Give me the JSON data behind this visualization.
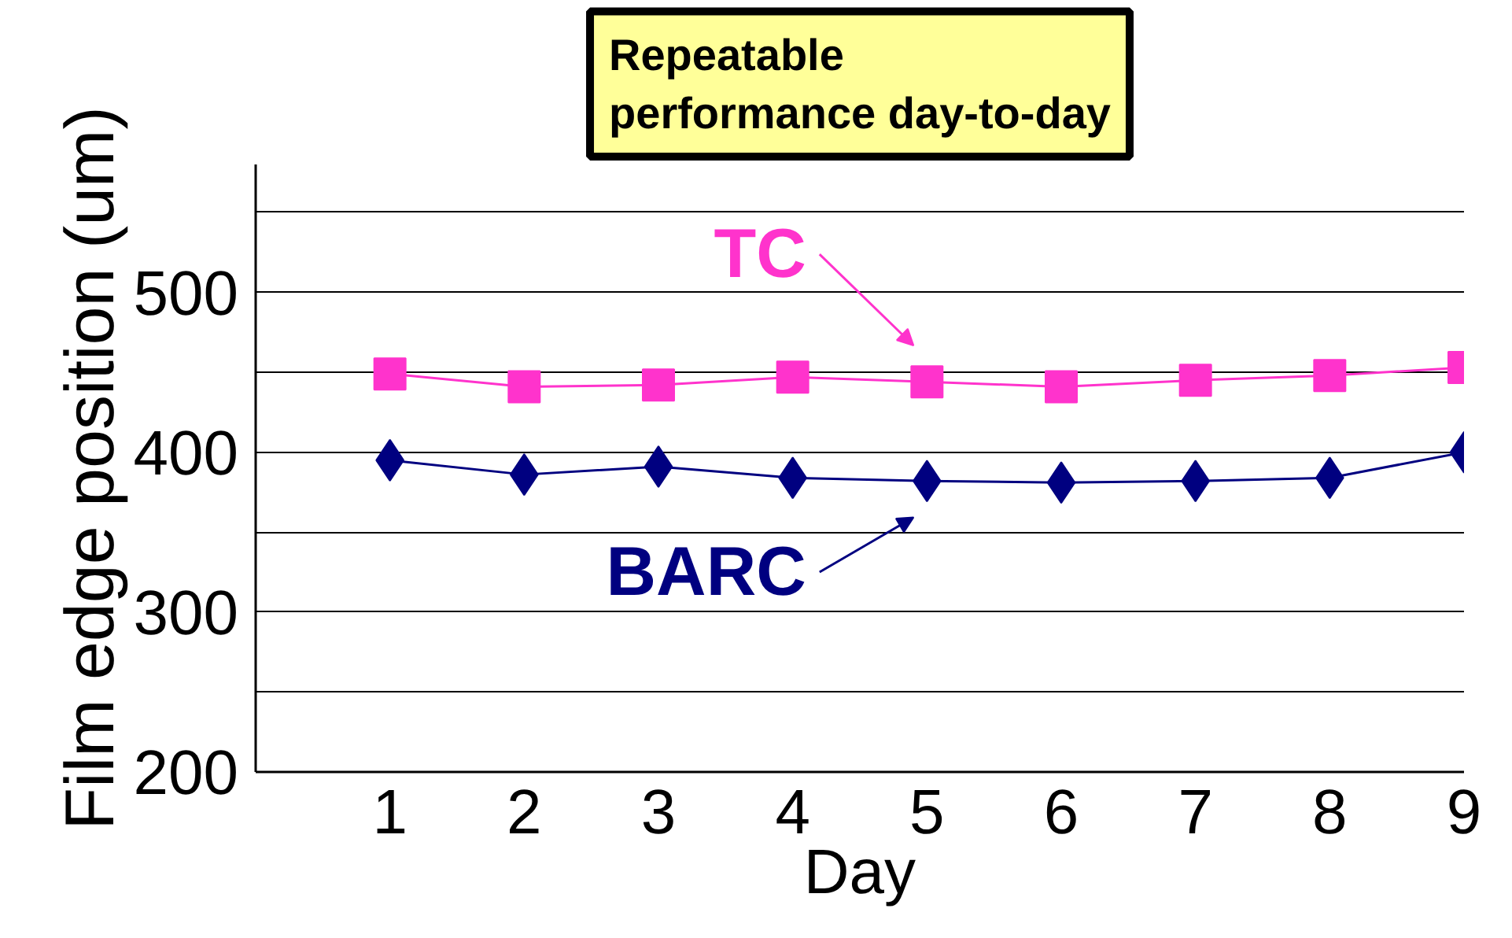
{
  "chart_data": {
    "type": "line",
    "title": "Repeatable performance day-to-day",
    "xlabel": "Day",
    "ylabel": "Film edge position (um)",
    "x": [
      1,
      2,
      3,
      4,
      5,
      6,
      7,
      8,
      9
    ],
    "series": [
      {
        "color": "#ff33cc",
        "marker": "square",
        "values": [
          449,
          441,
          442,
          447,
          444,
          441,
          445,
          448,
          453
        ]
      },
      {
        "color": "#000080",
        "marker": "diamond",
        "values": [
          395,
          386,
          391,
          384,
          382,
          381,
          382,
          384,
          400
        ]
      }
    ],
    "annotations": [
      {
        "text": "TC",
        "x": 5,
        "y": 444
      },
      {
        "text": "BARC",
        "x": 5,
        "y": 382
      }
    ],
    "xlim": [
      0,
      9
    ],
    "xticks": [
      1,
      2,
      3,
      4,
      5,
      6,
      7,
      8,
      9
    ],
    "ylim": [
      200,
      580
    ],
    "yticks": [
      200,
      {
        "value": 250,
        "label": null
      },
      300,
      {
        "value": 350,
        "label": null
      },
      400,
      {
        "value": 450,
        "label": null
      },
      500,
      {
        "value": 550,
        "label": null
      }
    ],
    "grid": "y",
    "line_style": "solid"
  }
}
